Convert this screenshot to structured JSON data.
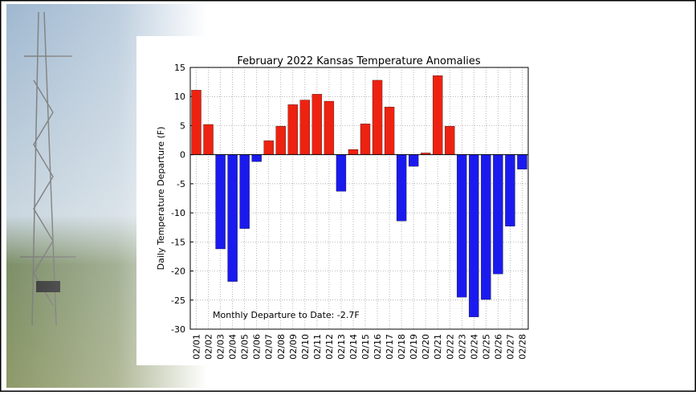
{
  "chart_data": {
    "type": "bar",
    "title": "February 2022 Kansas Temperature Anomalies",
    "y_label": "Daily Temperature Departure (F)",
    "annotation": "Monthly Departure to Date: -2.7F",
    "categories": [
      "02/01",
      "02/02",
      "02/03",
      "02/04",
      "02/05",
      "02/06",
      "02/07",
      "02/08",
      "02/09",
      "02/10",
      "02/11",
      "02/12",
      "02/13",
      "02/14",
      "02/15",
      "02/16",
      "02/17",
      "02/18",
      "02/19",
      "02/20",
      "02/21",
      "02/22",
      "02/23",
      "02/24",
      "02/25",
      "02/26",
      "02/27",
      "02/28"
    ],
    "values": [
      11.1,
      5.2,
      -16.2,
      -21.8,
      -12.7,
      -1.2,
      2.4,
      4.9,
      8.6,
      9.4,
      10.4,
      9.2,
      -6.3,
      0.9,
      5.3,
      12.8,
      8.2,
      -11.4,
      -2.0,
      0.3,
      13.6,
      4.9,
      -24.5,
      -27.9,
      -24.9,
      -20.5,
      -12.3,
      -2.5
    ],
    "positive_color": "#ee2211",
    "negative_color": "#1a1aee",
    "ylim": [
      -30,
      15
    ],
    "yticks": [
      -30,
      -25,
      -20,
      -15,
      -10,
      -5,
      0,
      5,
      10,
      15
    ],
    "grid": true
  }
}
